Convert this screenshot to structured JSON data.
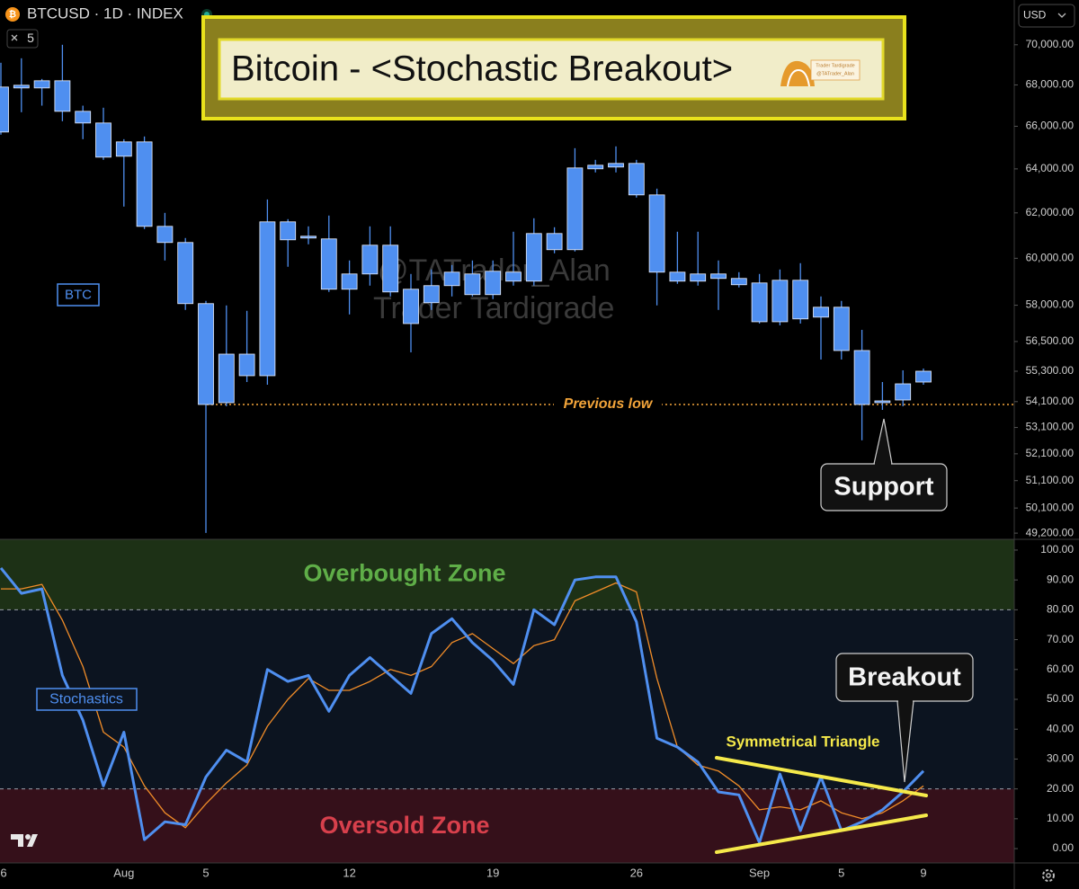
{
  "header": {
    "symbol": "BTCUSD · 1D · INDEX",
    "interval": "5",
    "currency": "USD"
  },
  "chart_data": [
    {
      "type": "candlestick",
      "title": "Bitcoin - <Stochastic Breakout>",
      "label": "BTC",
      "watermark": [
        "@TATrader_Alan",
        "Trader Tardigrade"
      ],
      "logo_text": [
        "Trader Tardigrade",
        "@TATrader_Alan"
      ],
      "categories": [
        "6",
        null,
        null,
        null,
        null,
        null,
        "Aug",
        null,
        null,
        null,
        "5",
        null,
        null,
        null,
        null,
        null,
        null,
        "12",
        null,
        null,
        null,
        null,
        null,
        null,
        "19",
        null,
        null,
        null,
        null,
        null,
        null,
        "26",
        null,
        null,
        null,
        null,
        null,
        "Sep",
        null,
        null,
        null,
        "5",
        null,
        null,
        null,
        "9"
      ],
      "open": [
        65727,
        67984,
        68205,
        68205,
        66716,
        66156,
        64587,
        65260,
        61399,
        60687,
        58067,
        54059,
        55987,
        55122,
        61599,
        60963,
        60845,
        58674,
        59324,
        60569,
        58674,
        58105,
        59401,
        59324,
        58445,
        59017,
        59017,
        60373,
        60373,
        64169,
        64253,
        64253,
        62809,
        59401,
        59324,
        59324,
        59132,
        58940,
        57312,
        59055,
        57916,
        57916,
        56133,
        54129,
        54164,
        54871
      ],
      "high": [
        69097,
        69321,
        68294,
        70000,
        66990,
        66890,
        65387,
        65515,
        62000,
        60884,
        58181,
        57992,
        57766,
        62606,
        61719,
        61399,
        61879,
        59905,
        61399,
        61399,
        59324,
        59517,
        59710,
        59905,
        59905,
        61161,
        61759,
        61360,
        64964,
        64419,
        65049,
        64419,
        63095,
        61161,
        61161,
        59905,
        59401,
        59324,
        59517,
        59788,
        58369,
        58181,
        56978,
        54871,
        55337,
        55409
      ],
      "low": [
        65600,
        66673,
        66990,
        66242,
        65387,
        64419,
        62282,
        61280,
        59905,
        57803,
        49208,
        53919,
        54871,
        54765,
        59633,
        60608,
        58559,
        57616,
        58826,
        58369,
        56060,
        57803,
        58369,
        58369,
        58256,
        58826,
        58826,
        60216,
        60295,
        63837,
        63837,
        62687,
        57992,
        58902,
        58826,
        57803,
        58750,
        57237,
        57163,
        57237,
        55770,
        55770,
        52611,
        53779,
        53919,
        54765
      ],
      "close": [
        67896,
        67852,
        67852,
        66716,
        66156,
        64545,
        65260,
        61399,
        60687,
        58067,
        53989,
        55987,
        55122,
        61599,
        60805,
        60884,
        58674,
        59324,
        60569,
        58559,
        57237,
        58826,
        58826,
        58445,
        59440,
        59401,
        61082,
        61082,
        64044,
        64003,
        64086,
        62809,
        59401,
        59017,
        59017,
        59132,
        58864,
        57312,
        59055,
        57430,
        57504,
        56133,
        53989,
        54059,
        54800,
        55301
      ],
      "color": "#4f8ff0",
      "log_scale": true,
      "ylim": [
        48980,
        72300
      ],
      "yticks": [
        {
          "value": 70000,
          "label": "70,000.00"
        },
        {
          "value": 68000,
          "label": "68,000.00"
        },
        {
          "value": 66000,
          "label": "66,000.00"
        },
        {
          "value": 64000,
          "label": "64,000.00"
        },
        {
          "value": 62000,
          "label": "62,000.00"
        },
        {
          "value": 60000,
          "label": "60,000.00"
        },
        {
          "value": 58000,
          "label": "58,000.00"
        },
        {
          "value": 56500,
          "label": "56,500.00"
        },
        {
          "value": 55300,
          "label": "55,300.00"
        },
        {
          "value": 54100,
          "label": "54,100.00"
        },
        {
          "value": 53100,
          "label": "53,100.00"
        },
        {
          "value": 52100,
          "label": "52,100.00"
        },
        {
          "value": 51100,
          "label": "51,100.00"
        },
        {
          "value": 50100,
          "label": "50,100.00"
        },
        {
          "value": 49200,
          "label": "49,200.00"
        }
      ],
      "reference_line": {
        "label": "Previous low",
        "value": 53989,
        "color": "#f2a43a"
      },
      "support_label": "Support"
    },
    {
      "type": "line",
      "label": "Stochastics",
      "series": [
        {
          "color": "#4f8ff0",
          "values": [
            94,
            85.5,
            87,
            58,
            43,
            21,
            39,
            3,
            9,
            8,
            24,
            33,
            29,
            60,
            56,
            58,
            46,
            58,
            64,
            58,
            52,
            72,
            77,
            69,
            63,
            55,
            80,
            75,
            90,
            91,
            91,
            76,
            37,
            34,
            29,
            19,
            18,
            2,
            25,
            6,
            24,
            6,
            9,
            13,
            19,
            26
          ]
        },
        {
          "color": "#f08c28",
          "values": [
            87,
            87,
            88.5,
            76.5,
            61,
            39,
            34,
            21,
            12,
            7,
            15,
            22,
            28,
            41,
            50,
            57,
            53,
            53,
            56,
            60,
            58,
            61,
            69,
            72,
            67,
            62,
            68,
            70,
            83,
            86,
            89,
            86,
            57,
            34,
            28,
            26,
            21,
            13,
            14,
            13,
            16,
            12,
            10,
            12,
            16,
            21
          ]
        }
      ],
      "ylim": [
        -4.8,
        103.6
      ],
      "yticks": [
        {
          "value": 0,
          "label": "0.00"
        },
        {
          "value": 10,
          "label": "10.00"
        },
        {
          "value": 20,
          "label": "20.00"
        },
        {
          "value": 30,
          "label": "30.00"
        },
        {
          "value": 40,
          "label": "40.00"
        },
        {
          "value": 50,
          "label": "50.00"
        },
        {
          "value": 60,
          "label": "60.00"
        },
        {
          "value": 70,
          "label": "70.00"
        },
        {
          "value": 80,
          "label": "80.00"
        },
        {
          "value": 90,
          "label": "90.00"
        },
        {
          "value": 100,
          "label": "100.00"
        }
      ],
      "zones": [
        {
          "label": "Overbought Zone",
          "level": 80,
          "side": "above",
          "color": "#1d3116",
          "text_color": "#5fae48"
        },
        {
          "label": "Oversold Zone",
          "level": 20,
          "side": "below",
          "color": "#35101a",
          "text_color": "#d8404c"
        }
      ],
      "pattern_label": "Symmetrical Triangle",
      "breakout_label": "Breakout"
    }
  ]
}
